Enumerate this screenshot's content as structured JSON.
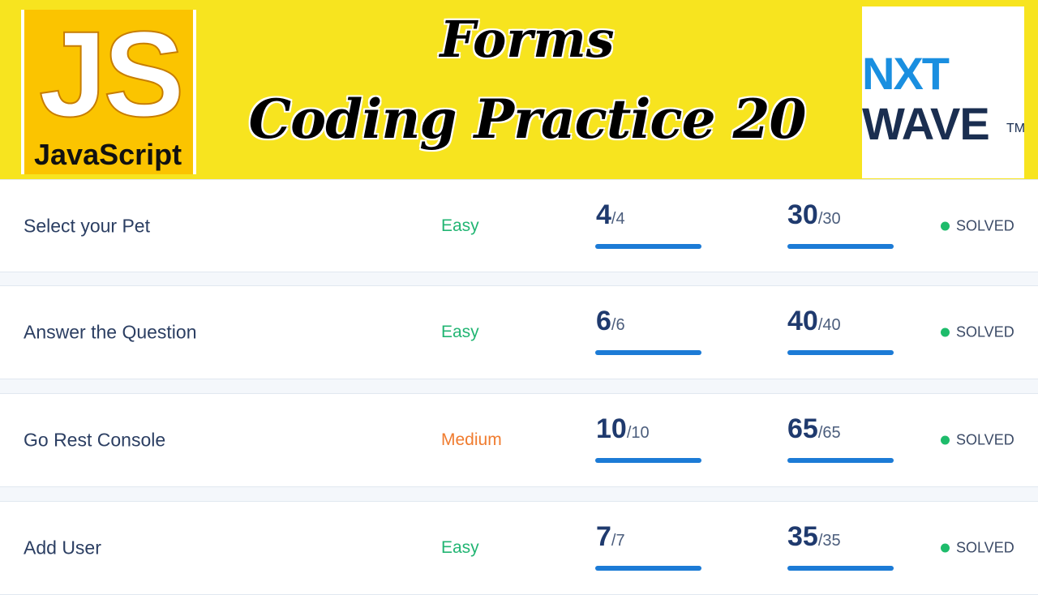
{
  "banner": {
    "logo_left": {
      "big": "JS",
      "small": "JavaScript"
    },
    "title_line1": "Forms",
    "title_line2": "Coding Practice 20",
    "logo_right": {
      "line1": "NXT",
      "line2": "WAVE",
      "tm": "TM"
    }
  },
  "colors": {
    "easy": "#22b573",
    "medium": "#f07c2f",
    "solved": "#1ebc6b",
    "bar": "#1c7bd6"
  },
  "rows": [
    {
      "name": "Select your Pet",
      "difficulty": "Easy",
      "difficulty_level": "easy",
      "tests": "4",
      "tests_total": "/4",
      "tests_fraction": 1,
      "score": "30",
      "score_total": "/30",
      "score_fraction": 1,
      "status": "SOLVED"
    },
    {
      "name": "Answer the Question",
      "difficulty": "Easy",
      "difficulty_level": "easy",
      "tests": "6",
      "tests_total": "/6",
      "tests_fraction": 1,
      "score": "40",
      "score_total": "/40",
      "score_fraction": 1,
      "status": "SOLVED"
    },
    {
      "name": "Go Rest Console",
      "difficulty": "Medium",
      "difficulty_level": "medium",
      "tests": "10",
      "tests_total": "/10",
      "tests_fraction": 1,
      "score": "65",
      "score_total": "/65",
      "score_fraction": 1,
      "status": "SOLVED"
    },
    {
      "name": "Add User",
      "difficulty": "Easy",
      "difficulty_level": "easy",
      "tests": "7",
      "tests_total": "/7",
      "tests_fraction": 1,
      "score": "35",
      "score_total": "/35",
      "score_fraction": 1,
      "status": "SOLVED"
    }
  ]
}
